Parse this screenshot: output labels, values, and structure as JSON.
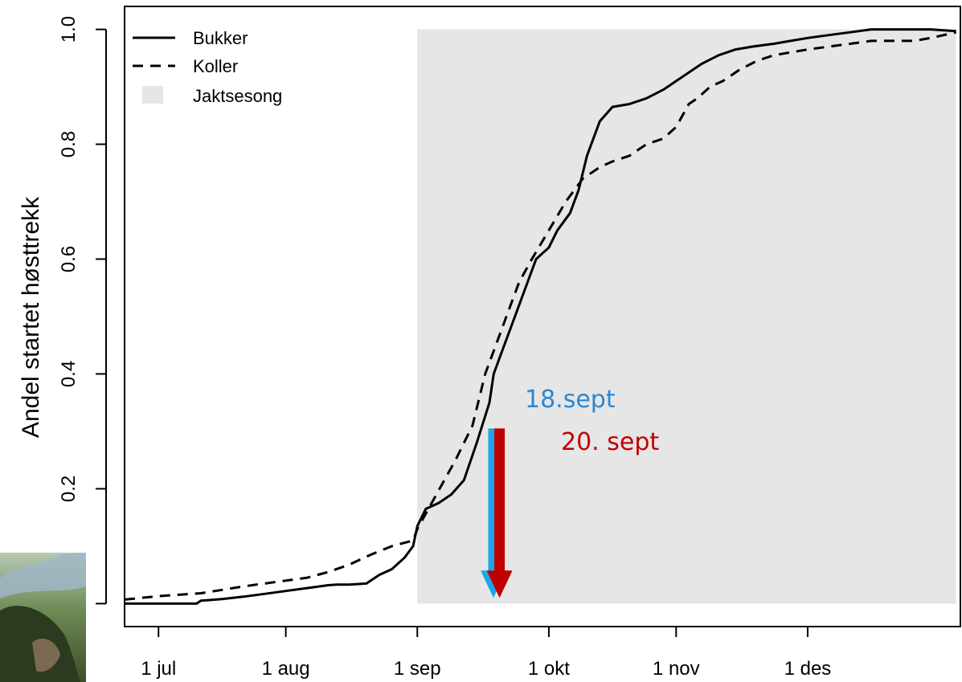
{
  "chart_data": {
    "type": "line",
    "title": "",
    "xlabel": "",
    "ylabel": "Andel startet høsttrekk",
    "x_tick_labels": [
      "1 jul",
      "1 aug",
      "1 sep",
      "1 okt",
      "1 nov",
      "1 des"
    ],
    "x_tick_dates": [
      "06-01",
      "07-01",
      "08-01",
      "09-01",
      "10-01",
      "11-01"
    ],
    "y_tick_labels": [
      "0.0",
      "0.2",
      "0.4",
      "0.6",
      "0.8",
      "1.0"
    ],
    "y_ticks": [
      0,
      0.2,
      0.4,
      0.6,
      0.8,
      1.0
    ],
    "xlim": [
      "05-24",
      "12-07"
    ],
    "ylim": [
      -0.04,
      1.04
    ],
    "shaded_region": {
      "name": "Jaktsesong",
      "x_start": "08-01",
      "x_end": "12-06",
      "y_start": 0,
      "y_end": 1.0,
      "color": "#e6e6e6"
    },
    "series": [
      {
        "name": "Bukker",
        "style": "solid",
        "color": "#000000",
        "x": [
          "05-24",
          "05-27",
          "06-01",
          "06-10",
          "06-11",
          "06-16",
          "06-21",
          "06-26",
          "07-01",
          "07-06",
          "07-11",
          "07-13",
          "07-16",
          "07-20",
          "07-23",
          "07-26",
          "07-29",
          "07-31",
          "08-01",
          "08-03",
          "08-06",
          "08-09",
          "08-12",
          "08-15",
          "08-18",
          "08-19",
          "08-21",
          "08-24",
          "08-27",
          "08-29",
          "09-01",
          "09-03",
          "09-06",
          "09-08",
          "09-10",
          "09-13",
          "09-16",
          "09-20",
          "09-24",
          "09-28",
          "10-01",
          "10-04",
          "10-07",
          "10-11",
          "10-15",
          "10-19",
          "10-24",
          "10-28",
          "11-01",
          "11-06",
          "11-11",
          "11-16",
          "11-21",
          "11-25",
          "11-30",
          "12-06"
        ],
        "values": [
          0.0,
          0.0,
          0.0,
          0.0,
          0.005,
          0.008,
          0.012,
          0.017,
          0.022,
          0.027,
          0.032,
          0.033,
          0.033,
          0.035,
          0.05,
          0.06,
          0.08,
          0.1,
          0.135,
          0.165,
          0.175,
          0.19,
          0.215,
          0.28,
          0.35,
          0.4,
          0.44,
          0.5,
          0.56,
          0.6,
          0.62,
          0.65,
          0.68,
          0.72,
          0.78,
          0.84,
          0.865,
          0.87,
          0.88,
          0.895,
          0.91,
          0.925,
          0.94,
          0.955,
          0.965,
          0.97,
          0.975,
          0.98,
          0.985,
          0.99,
          0.995,
          1.0,
          1.0,
          1.0,
          1.0,
          0.997
        ]
      },
      {
        "name": "Koller",
        "style": "dashed",
        "color": "#000000",
        "x": [
          "05-24",
          "06-01",
          "06-11",
          "06-16",
          "06-21",
          "06-26",
          "07-01",
          "07-06",
          "07-11",
          "07-16",
          "07-21",
          "07-26",
          "07-31",
          "08-01",
          "08-04",
          "08-07",
          "08-10",
          "08-14",
          "08-17",
          "08-19",
          "08-22",
          "08-25",
          "08-28",
          "09-01",
          "09-05",
          "09-09",
          "09-13",
          "09-16",
          "09-20",
          "09-24",
          "09-28",
          "10-01",
          "10-04",
          "10-06",
          "10-09",
          "10-12",
          "10-16",
          "10-20",
          "10-24",
          "10-28",
          "11-01",
          "11-06",
          "11-11",
          "11-16",
          "11-21",
          "11-26",
          "11-30",
          "12-06"
        ],
        "values": [
          0.007,
          0.013,
          0.018,
          0.024,
          0.03,
          0.035,
          0.04,
          0.045,
          0.055,
          0.068,
          0.085,
          0.1,
          0.11,
          0.13,
          0.17,
          0.21,
          0.25,
          0.31,
          0.4,
          0.44,
          0.5,
          0.56,
          0.6,
          0.65,
          0.7,
          0.74,
          0.76,
          0.77,
          0.78,
          0.8,
          0.81,
          0.83,
          0.87,
          0.88,
          0.9,
          0.91,
          0.93,
          0.945,
          0.955,
          0.96,
          0.965,
          0.97,
          0.975,
          0.98,
          0.98,
          0.98,
          0.985,
          0.995
        ]
      }
    ],
    "legend": {
      "placement": "top-left",
      "entries": [
        "Bukker",
        "Koller",
        "Jaktsesong"
      ]
    },
    "annotations": [
      {
        "text": "18.sept",
        "x": "08-18",
        "color": "#2e86d1",
        "arrow_color": "#1aa7e8",
        "arrow_from_y": 0.305,
        "arrow_to_y": 0.01
      },
      {
        "text": "20. sept",
        "x": "08-20",
        "color": "#c00000",
        "arrow_color": "#c00000",
        "arrow_from_y": 0.305,
        "arrow_to_y": 0.01
      }
    ],
    "grid": false
  }
}
